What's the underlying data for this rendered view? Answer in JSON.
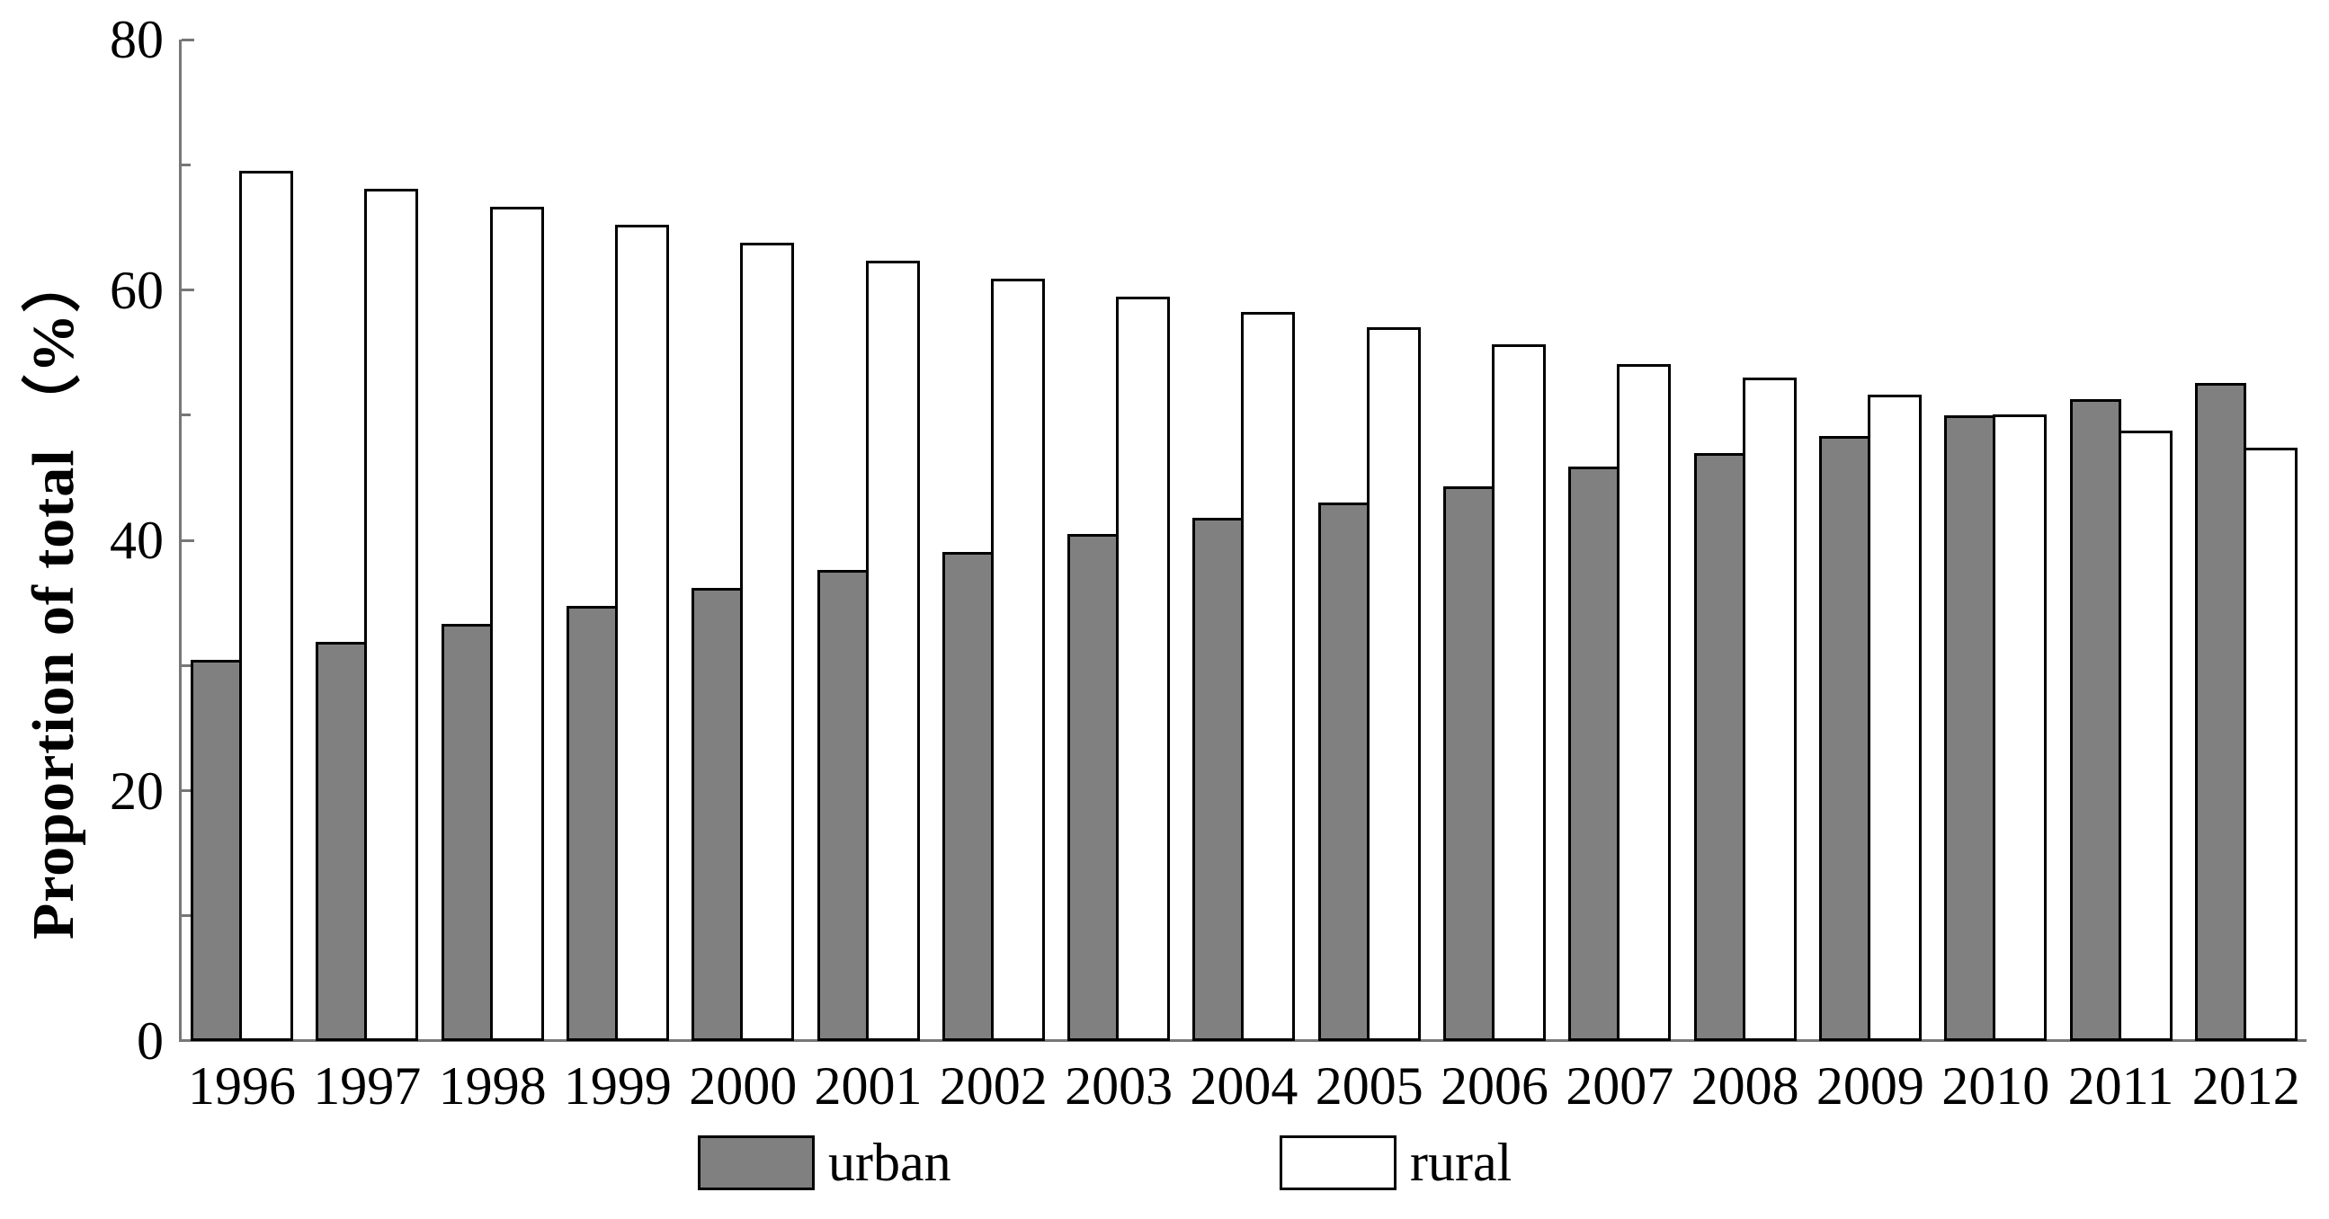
{
  "chart_data": {
    "type": "bar",
    "title": "",
    "xlabel": "",
    "ylabel": "Proportion of total （%）",
    "ylim": [
      0,
      80
    ],
    "yticks_major": [
      0,
      20,
      40,
      60,
      80
    ],
    "yticks_minor": [
      10,
      30,
      50,
      70
    ],
    "grid": false,
    "legend_position": "bottom",
    "categories": [
      "1996",
      "1997",
      "1998",
      "1999",
      "2000",
      "2001",
      "2002",
      "2003",
      "2004",
      "2005",
      "2006",
      "2007",
      "2008",
      "2009",
      "2010",
      "2011",
      "2012"
    ],
    "series": [
      {
        "name": "urban",
        "color": "#808080",
        "values": [
          30.48,
          31.91,
          33.35,
          34.78,
          36.22,
          37.66,
          39.09,
          40.53,
          41.76,
          42.99,
          44.34,
          45.89,
          46.99,
          48.34,
          49.95,
          51.27,
          52.57
        ]
      },
      {
        "name": "rural",
        "color": "#ffffff",
        "values": [
          69.52,
          68.09,
          66.65,
          65.22,
          63.78,
          62.34,
          60.91,
          59.47,
          58.24,
          57.01,
          55.66,
          54.11,
          53.01,
          51.66,
          50.05,
          48.73,
          47.43
        ]
      }
    ]
  },
  "colors": {
    "bar_urban": "#808080",
    "bar_rural": "#ffffff",
    "bar_outline": "#000000",
    "axis": "#777777",
    "text": "#000000",
    "background": "#ffffff"
  }
}
